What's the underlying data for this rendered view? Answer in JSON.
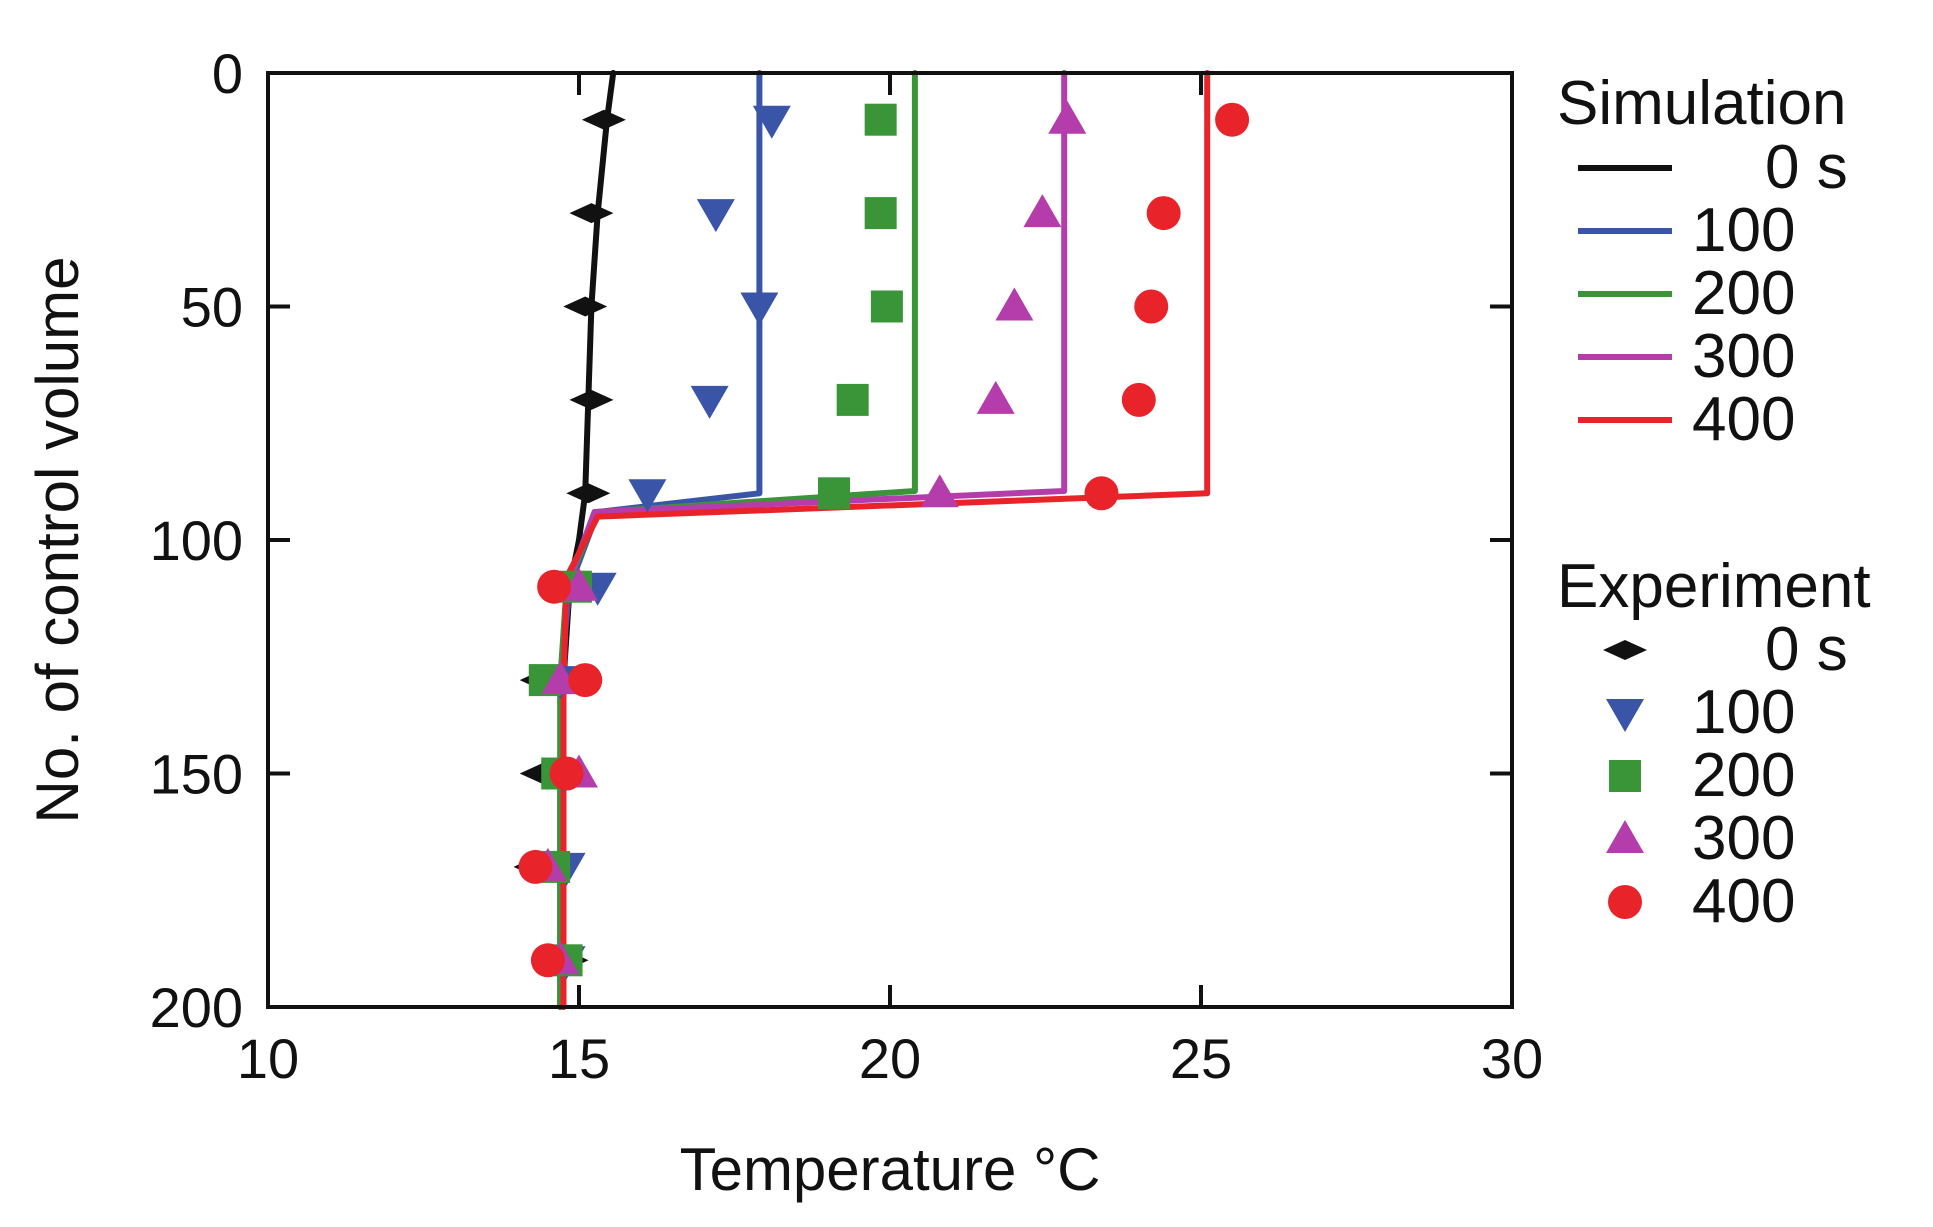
{
  "chart_data": {
    "type": "line",
    "title": "",
    "xlabel": "Temperature   °C",
    "ylabel": "No. of control volume",
    "xlim": [
      10,
      30
    ],
    "ylim": [
      0,
      200
    ],
    "y_inverted": true,
    "x_ticks": [
      10,
      15,
      20,
      25,
      30
    ],
    "x_tick_labels": [
      "10",
      "15",
      "20",
      "25",
      "30"
    ],
    "y_ticks": [
      0,
      50,
      100,
      150,
      200
    ],
    "y_tick_labels": [
      "0",
      "50",
      "100",
      "150",
      "200"
    ],
    "grid": false,
    "legend_position": "right",
    "legend": {
      "simulation_title": "Simulation",
      "experiment_title": "Experiment",
      "labels": [
        "0 s",
        "100",
        "200",
        "300",
        "400"
      ]
    },
    "colors": {
      "0 s": "#111111",
      "100": "#3a55a8",
      "200": "#3a9438",
      "300": "#b43cab",
      "400": "#e8242a"
    },
    "simulation": [
      {
        "name": "0 s",
        "color": "#111111",
        "points": [
          [
            15.55,
            0
          ],
          [
            15.45,
            10
          ],
          [
            15.3,
            30
          ],
          [
            15.2,
            50
          ],
          [
            15.15,
            70
          ],
          [
            15.1,
            90
          ],
          [
            15.0,
            100
          ],
          [
            14.85,
            110
          ],
          [
            14.75,
            130
          ],
          [
            14.7,
            150
          ],
          [
            14.7,
            170
          ],
          [
            14.7,
            190
          ],
          [
            14.7,
            200
          ]
        ]
      },
      {
        "name": "100",
        "color": "#3a55a8",
        "points": [
          [
            17.9,
            0
          ],
          [
            17.9,
            90
          ],
          [
            15.3,
            94
          ],
          [
            14.85,
            110
          ],
          [
            14.7,
            130
          ],
          [
            14.7,
            200
          ]
        ]
      },
      {
        "name": "200",
        "color": "#3a9438",
        "points": [
          [
            20.4,
            0
          ],
          [
            20.4,
            89.5
          ],
          [
            15.3,
            94
          ],
          [
            14.8,
            110
          ],
          [
            14.7,
            130
          ],
          [
            14.7,
            200
          ]
        ]
      },
      {
        "name": "300",
        "color": "#b43cab",
        "points": [
          [
            22.8,
            0
          ],
          [
            22.8,
            89.5
          ],
          [
            15.25,
            94
          ],
          [
            14.8,
            110
          ],
          [
            14.75,
            130
          ],
          [
            14.75,
            200
          ]
        ]
      },
      {
        "name": "400",
        "color": "#e8242a",
        "points": [
          [
            25.1,
            0
          ],
          [
            25.1,
            90
          ],
          [
            15.3,
            95
          ],
          [
            14.8,
            108
          ],
          [
            14.75,
            130
          ],
          [
            14.75,
            200
          ]
        ]
      }
    ],
    "experiment": [
      {
        "name": "0 s",
        "color": "#111111",
        "marker": "diamond",
        "points": [
          [
            15.4,
            10
          ],
          [
            15.2,
            30
          ],
          [
            15.1,
            50
          ],
          [
            15.2,
            70
          ],
          [
            15.15,
            90
          ],
          [
            14.4,
            130
          ],
          [
            14.4,
            150
          ],
          [
            14.3,
            170
          ],
          [
            14.8,
            190
          ]
        ]
      },
      {
        "name": "100",
        "color": "#3a55a8",
        "marker": "triangle-down",
        "points": [
          [
            18.1,
            10
          ],
          [
            17.2,
            30
          ],
          [
            17.9,
            50
          ],
          [
            17.1,
            70
          ],
          [
            16.1,
            90
          ],
          [
            15.3,
            110
          ],
          [
            14.7,
            130
          ],
          [
            14.75,
            150
          ],
          [
            14.8,
            170
          ],
          [
            14.8,
            190
          ]
        ]
      },
      {
        "name": "200",
        "color": "#3a9438",
        "marker": "square",
        "points": [
          [
            19.85,
            10
          ],
          [
            19.85,
            30
          ],
          [
            19.95,
            50
          ],
          [
            19.4,
            70
          ],
          [
            19.1,
            90
          ],
          [
            14.95,
            110
          ],
          [
            14.45,
            130
          ],
          [
            14.65,
            150
          ],
          [
            14.6,
            170
          ],
          [
            14.8,
            190
          ]
        ]
      },
      {
        "name": "300",
        "color": "#b43cab",
        "marker": "triangle-up",
        "points": [
          [
            22.85,
            10
          ],
          [
            22.45,
            30
          ],
          [
            22.0,
            50
          ],
          [
            21.7,
            70
          ],
          [
            20.8,
            90
          ],
          [
            15.0,
            110
          ],
          [
            14.7,
            130
          ],
          [
            15.0,
            150
          ],
          [
            14.5,
            170
          ],
          [
            14.7,
            190
          ]
        ]
      },
      {
        "name": "400",
        "color": "#e8242a",
        "marker": "circle",
        "points": [
          [
            25.5,
            10
          ],
          [
            24.4,
            30
          ],
          [
            24.2,
            50
          ],
          [
            24.0,
            70
          ],
          [
            23.4,
            90
          ],
          [
            14.6,
            110
          ],
          [
            15.1,
            130
          ],
          [
            14.8,
            150
          ],
          [
            14.3,
            170
          ],
          [
            14.5,
            190
          ]
        ]
      }
    ]
  }
}
